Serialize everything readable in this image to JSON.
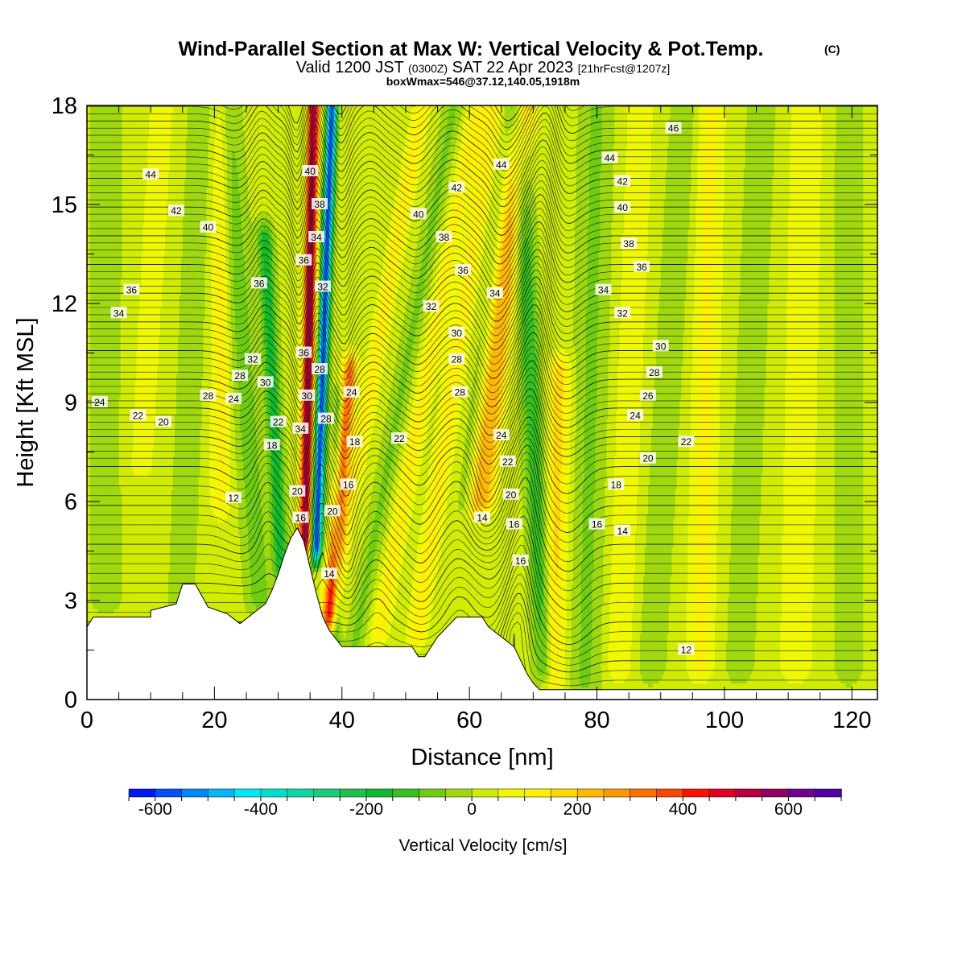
{
  "header": {
    "title": "Wind-Parallel Section at Max W: Vertical Velocity & Pot.Temp.",
    "copyright": "(C)",
    "valid_prefix": "Valid 1200 JST",
    "valid_utc": "(0300Z)",
    "valid_suffix": "SAT 22 Apr 2023",
    "forecast": "[21hrFcst@1207z]",
    "box_info": "boxWmax=546@37.12,140.05,1918m"
  },
  "chart_data": {
    "type": "contour-cross-section",
    "xlabel": "Distance [nm]",
    "ylabel": "Height [Kft MSL]",
    "xlim": [
      0,
      124
    ],
    "ylim": [
      0,
      18
    ],
    "x_ticks": [
      "0",
      "20",
      "40",
      "60",
      "80",
      "100",
      "120"
    ],
    "y_ticks": [
      "0",
      "3",
      "6",
      "9",
      "12",
      "15",
      "18"
    ],
    "colorbar": {
      "label": "Vertical Velocity [cm/s]",
      "range": [
        -650,
        700
      ],
      "step": 50,
      "tick_values": [
        -600,
        -400,
        -200,
        0,
        200,
        400,
        600
      ],
      "tick_labels": [
        "-600",
        "-400",
        "-200",
        "0",
        "200",
        "400",
        "600"
      ],
      "colors": [
        "#0018f0",
        "#0050f8",
        "#0088f8",
        "#00b8f8",
        "#00e8f0",
        "#00e0c8",
        "#10d8a0",
        "#18cc78",
        "#20c050",
        "#10b830",
        "#38c020",
        "#70cc10",
        "#a0d810",
        "#d0ec00",
        "#f0f800",
        "#fff000",
        "#ffd800",
        "#ffb800",
        "#ff9800",
        "#ff7000",
        "#f84800",
        "#ff1000",
        "#e00020",
        "#b80040",
        "#900060",
        "#700090",
        "#5000a0"
      ]
    },
    "terrain_kft": [
      [
        0,
        2.2
      ],
      [
        1,
        2.5
      ],
      [
        10,
        2.5
      ],
      [
        10,
        2.7
      ],
      [
        14,
        2.9
      ],
      [
        15,
        3.5
      ],
      [
        17,
        3.5
      ],
      [
        19,
        2.8
      ],
      [
        22,
        2.6
      ],
      [
        24,
        2.3
      ],
      [
        26,
        2.6
      ],
      [
        28,
        2.9
      ],
      [
        29,
        3.3
      ],
      [
        30,
        3.8
      ],
      [
        31,
        4.4
      ],
      [
        32,
        4.9
      ],
      [
        33,
        5.2
      ],
      [
        34,
        4.8
      ],
      [
        35,
        4.0
      ],
      [
        36,
        3.2
      ],
      [
        37,
        2.5
      ],
      [
        38,
        2.1
      ],
      [
        40,
        1.6
      ],
      [
        51,
        1.6
      ],
      [
        52,
        1.3
      ],
      [
        53,
        1.3
      ],
      [
        54,
        1.6
      ],
      [
        55,
        1.9
      ],
      [
        57,
        2.3
      ],
      [
        58,
        2.5
      ],
      [
        62,
        2.5
      ],
      [
        63,
        2.2
      ],
      [
        65,
        1.9
      ],
      [
        67,
        1.6
      ],
      [
        68,
        1.2
      ],
      [
        69,
        0.8
      ],
      [
        70,
        0.5
      ],
      [
        71,
        0.3
      ],
      [
        124,
        0.3
      ]
    ],
    "w_features_cm_s": [
      {
        "x": 34.5,
        "z_bottom": 5.0,
        "z_top": 18.0,
        "w": 546
      },
      {
        "x": 36.5,
        "z_bottom": 5.0,
        "z_top": 18.0,
        "w": -600
      },
      {
        "x": 40.5,
        "z_bottom": 3.0,
        "z_top": 10.0,
        "w": 350
      },
      {
        "x": 66.0,
        "z_bottom": 7.0,
        "z_top": 18.0,
        "w": 250
      },
      {
        "x": 72.0,
        "z_bottom": 1.0,
        "z_top": 10.0,
        "w": -150
      }
    ],
    "theta_labels": [
      "44",
      "42",
      "40",
      "38",
      "36",
      "34",
      "32",
      "30",
      "28",
      "26",
      "24",
      "22",
      "20",
      "18",
      "16",
      "14",
      "12",
      "46"
    ]
  }
}
